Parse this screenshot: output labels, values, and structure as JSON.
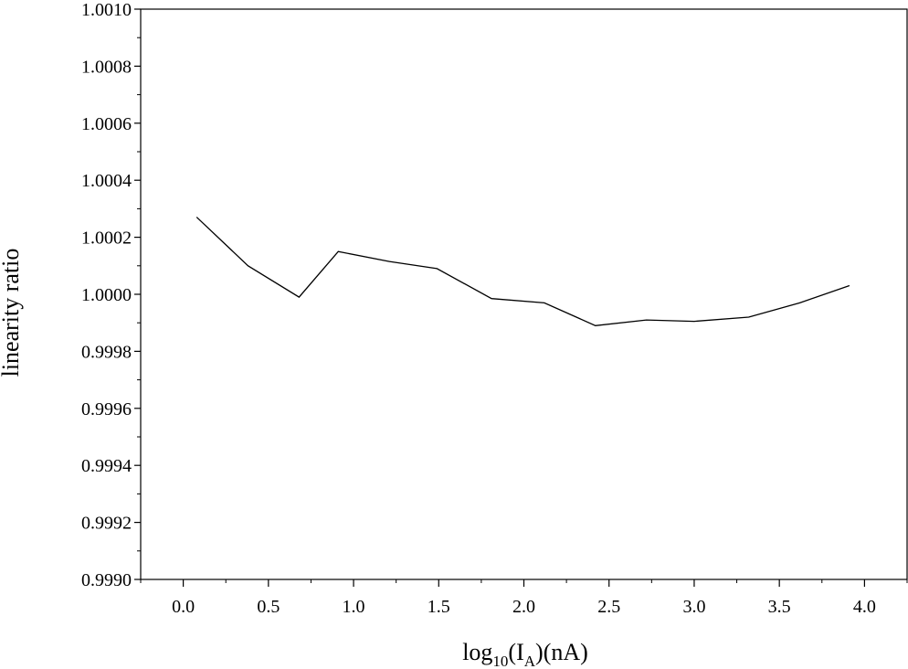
{
  "chart_data": {
    "type": "line",
    "title": "",
    "xlabel": {
      "base": "log",
      "sub1": "10",
      "mid": "(I",
      "sub2": "A",
      "tail": ")(nA)"
    },
    "ylabel": "linearity ratio",
    "xlim": [
      -0.25,
      4.25
    ],
    "ylim": [
      0.999,
      1.001
    ],
    "grid": false,
    "x_ticks": [
      "0.0",
      "0.5",
      "1.0",
      "1.5",
      "2.0",
      "2.5",
      "3.0",
      "3.5",
      "4.0"
    ],
    "y_ticks": [
      "0.9990",
      "0.9992",
      "0.9994",
      "0.9996",
      "0.9998",
      "1.0000",
      "1.0002",
      "1.0004",
      "1.0006",
      "1.0008",
      "1.0010"
    ],
    "series": [
      {
        "color": "#000000",
        "x": [
          0.08,
          0.38,
          0.68,
          0.91,
          1.21,
          1.49,
          1.81,
          2.12,
          2.42,
          2.72,
          3.0,
          3.32,
          3.62,
          3.91
        ],
        "y": [
          1.00027,
          1.0001,
          0.99999,
          1.00015,
          1.000115,
          1.00009,
          0.999985,
          0.99997,
          0.99989,
          0.99991,
          0.999905,
          0.99992,
          0.99997,
          1.00003
        ]
      }
    ]
  }
}
